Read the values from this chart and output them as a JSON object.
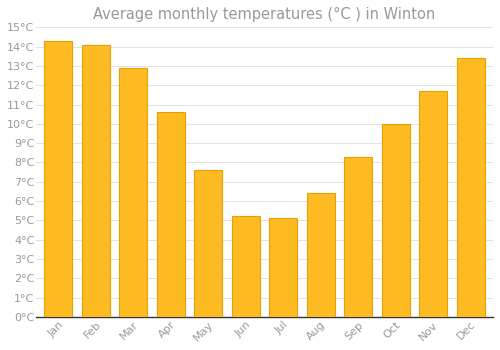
{
  "title": "Average monthly temperatures (°C ) in Winton",
  "months": [
    "Jan",
    "Feb",
    "Mar",
    "Apr",
    "May",
    "Jun",
    "Jul",
    "Aug",
    "Sep",
    "Oct",
    "Nov",
    "Dec"
  ],
  "values": [
    14.3,
    14.1,
    12.9,
    10.6,
    7.6,
    5.2,
    5.1,
    6.4,
    8.3,
    10.0,
    11.7,
    13.4
  ],
  "bar_color": "#FFBB22",
  "bar_edge_color": "#E8A000",
  "background_color": "#FFFFFF",
  "grid_color": "#DDDDDD",
  "text_color": "#999999",
  "axis_color": "#333333",
  "ylim": [
    0,
    15
  ],
  "ytick_step": 1,
  "title_fontsize": 10.5,
  "tick_fontsize": 8,
  "bar_width": 0.75
}
